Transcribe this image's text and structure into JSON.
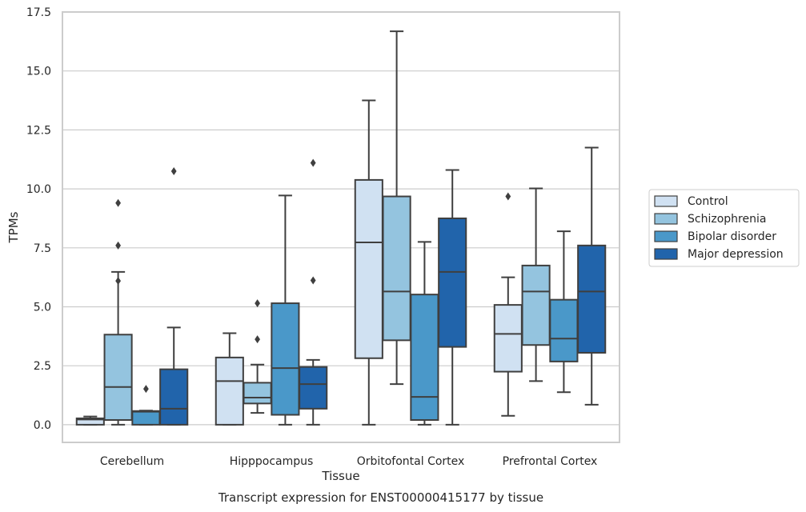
{
  "chart_data": {
    "type": "box",
    "caption": "Transcript expression for ENST00000415177 by tissue",
    "xlabel": "Tissue",
    "ylabel": "TPMs",
    "ylim": [
      -0.75,
      17.5
    ],
    "yticks": [
      "0.0",
      "2.5",
      "5.0",
      "7.5",
      "10.0",
      "12.5",
      "15.0",
      "17.5"
    ],
    "grid": "horizontal",
    "legend_placement": "right",
    "categories": [
      "Cerebellum",
      "Hipppocampus",
      "Orbitofontal Cortex",
      "Prefrontal Cortex"
    ],
    "series": [
      {
        "name": "Control",
        "color": "#d0e1f2",
        "boxes": [
          {
            "whislo": 0.0,
            "q1": 0.0,
            "med": 0.22,
            "q3": 0.27,
            "whishi": 0.35,
            "fliers": []
          },
          {
            "whislo": 0.0,
            "q1": 0.0,
            "med": 1.85,
            "q3": 2.85,
            "whishi": 3.88,
            "fliers": []
          },
          {
            "whislo": 0.0,
            "q1": 2.82,
            "med": 7.73,
            "q3": 10.38,
            "whishi": 13.75,
            "fliers": []
          },
          {
            "whislo": 0.38,
            "q1": 2.25,
            "med": 3.85,
            "q3": 5.08,
            "whishi": 6.25,
            "fliers": [
              9.68
            ]
          }
        ]
      },
      {
        "name": "Schizophrenia",
        "color": "#94c4df",
        "boxes": [
          {
            "whislo": 0.0,
            "q1": 0.2,
            "med": 1.6,
            "q3": 3.82,
            "whishi": 6.48,
            "fliers": [
              7.6,
              6.1,
              9.4
            ]
          },
          {
            "whislo": 0.5,
            "q1": 0.9,
            "med": 1.15,
            "q3": 1.78,
            "whishi": 2.55,
            "fliers": [
              5.15,
              3.62
            ]
          },
          {
            "whislo": 1.72,
            "q1": 3.58,
            "med": 5.65,
            "q3": 9.68,
            "whishi": 16.68,
            "fliers": []
          },
          {
            "whislo": 1.85,
            "q1": 3.38,
            "med": 5.65,
            "q3": 6.75,
            "whishi": 10.02,
            "fliers": []
          }
        ]
      },
      {
        "name": "Bipolar disorder",
        "color": "#4a98c9",
        "boxes": [
          {
            "whislo": 0.0,
            "q1": 0.0,
            "med": 0.55,
            "q3": 0.58,
            "whishi": 0.6,
            "fliers": [
              1.52
            ]
          },
          {
            "whislo": 0.0,
            "q1": 0.42,
            "med": 2.4,
            "q3": 5.15,
            "whishi": 9.72,
            "fliers": []
          },
          {
            "whislo": 0.0,
            "q1": 0.2,
            "med": 1.18,
            "q3": 5.52,
            "whishi": 7.75,
            "fliers": []
          },
          {
            "whislo": 1.38,
            "q1": 2.68,
            "med": 3.65,
            "q3": 5.3,
            "whishi": 8.2,
            "fliers": []
          }
        ]
      },
      {
        "name": "Major depression",
        "color": "#2164ab",
        "boxes": [
          {
            "whislo": 0.0,
            "q1": 0.0,
            "med": 0.68,
            "q3": 2.35,
            "whishi": 4.12,
            "fliers": [
              10.75
            ]
          },
          {
            "whislo": 0.0,
            "q1": 0.68,
            "med": 1.72,
            "q3": 2.45,
            "whishi": 2.75,
            "fliers": [
              11.1,
              6.12
            ]
          },
          {
            "whislo": 0.0,
            "q1": 3.3,
            "med": 6.48,
            "q3": 8.75,
            "whishi": 10.8,
            "fliers": []
          },
          {
            "whislo": 0.85,
            "q1": 3.05,
            "med": 5.65,
            "q3": 7.6,
            "whishi": 11.75,
            "fliers": []
          }
        ]
      }
    ]
  }
}
